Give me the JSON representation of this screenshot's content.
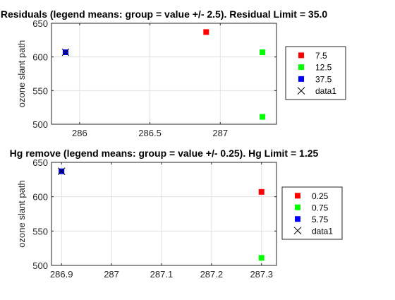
{
  "chart_data": [
    {
      "type": "scatter",
      "title": "Residuals (legend means: group = value +/- 2.5). Residual Limit = 35.0",
      "xlabel": "",
      "ylabel": "ozone slant path",
      "xlim": [
        285.8,
        287.4
      ],
      "ylim": [
        500,
        650
      ],
      "xticks": [
        286,
        286.5,
        287
      ],
      "yticks": [
        500,
        550,
        600,
        650
      ],
      "xtick_labels": [
        "286",
        "286.5",
        "287"
      ],
      "ytick_labels": [
        "500",
        "550",
        "600",
        "650"
      ],
      "grid": true,
      "legend_position": "right",
      "series": [
        {
          "name": "7.5",
          "color": "#ff0000",
          "marker": "square",
          "x": [
            286.9
          ],
          "y": [
            637
          ]
        },
        {
          "name": "12.5",
          "color": "#00ff00",
          "marker": "square",
          "x": [
            287.3,
            287.3
          ],
          "y": [
            607,
            511
          ]
        },
        {
          "name": "37.5",
          "color": "#0000ff",
          "marker": "square",
          "x": [
            285.9
          ],
          "y": [
            607
          ]
        },
        {
          "name": "data1",
          "color": "#000000",
          "marker": "x",
          "x": [
            285.9
          ],
          "y": [
            607
          ]
        }
      ]
    },
    {
      "type": "scatter",
      "title": "Hg remove (legend means: group = value +/- 0.25). Hg Limit = 1.25",
      "xlabel": "",
      "ylabel": "ozone slant path",
      "xlim": [
        286.88,
        287.33
      ],
      "ylim": [
        500,
        650
      ],
      "xticks": [
        286.9,
        287,
        287.1,
        287.2,
        287.3
      ],
      "yticks": [
        500,
        550,
        600,
        650
      ],
      "xtick_labels": [
        "286.9",
        "287",
        "287.1",
        "287.2",
        "287.3"
      ],
      "ytick_labels": [
        "500",
        "550",
        "600",
        "650"
      ],
      "grid": true,
      "legend_position": "right",
      "series": [
        {
          "name": "0.25",
          "color": "#ff0000",
          "marker": "square",
          "x": [
            287.3
          ],
          "y": [
            607
          ]
        },
        {
          "name": "0.75",
          "color": "#00ff00",
          "marker": "square",
          "x": [
            287.3
          ],
          "y": [
            511
          ]
        },
        {
          "name": "5.75",
          "color": "#0000ff",
          "marker": "square",
          "x": [
            286.9
          ],
          "y": [
            637
          ]
        },
        {
          "name": "data1",
          "color": "#000000",
          "marker": "x",
          "x": [
            286.9
          ],
          "y": [
            637
          ]
        }
      ]
    }
  ]
}
